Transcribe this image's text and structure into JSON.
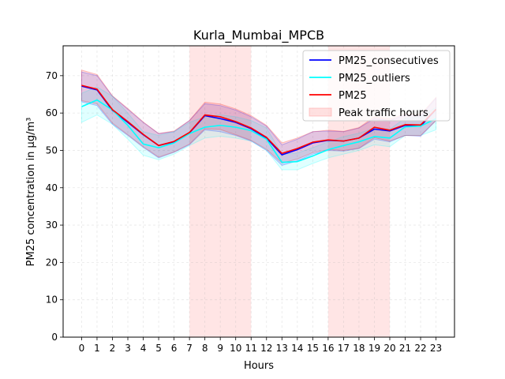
{
  "chart_data": {
    "type": "line",
    "title": "Kurla_Mumbai_MPCB",
    "xlabel": "Hours",
    "ylabel": "PM25 concentration in μg/m³",
    "x": [
      0,
      1,
      2,
      3,
      4,
      5,
      6,
      7,
      8,
      9,
      10,
      11,
      12,
      13,
      14,
      15,
      16,
      17,
      18,
      19,
      20,
      21,
      22,
      23
    ],
    "xticks": [
      "0",
      "1",
      "2",
      "3",
      "4",
      "5",
      "6",
      "7",
      "8",
      "9",
      "10",
      "11",
      "12",
      "13",
      "14",
      "15",
      "16",
      "17",
      "18",
      "19",
      "20",
      "21",
      "22",
      "23"
    ],
    "yticks": [
      "0",
      "10",
      "20",
      "30",
      "40",
      "50",
      "60",
      "70"
    ],
    "xlim": [
      -1.2,
      24.2
    ],
    "ylim": [
      0,
      78
    ],
    "grid": true,
    "legend_position": "top-right",
    "series": [
      {
        "name": "PM25_consecutives",
        "color": "#0000ff",
        "values": [
          67.2,
          66.2,
          60.7,
          57.5,
          54.2,
          51.3,
          52.3,
          54.7,
          59.3,
          58.5,
          57.5,
          55.8,
          53.3,
          48.8,
          50.2,
          52.0,
          52.7,
          52.5,
          53.3,
          55.7,
          55.2,
          56.7,
          56.5,
          61.0
        ],
        "band_lower": [
          63.0,
          62.0,
          57.0,
          54.0,
          50.8,
          48.0,
          49.5,
          51.5,
          55.5,
          55.0,
          54.0,
          52.5,
          50.0,
          46.0,
          47.2,
          49.0,
          50.0,
          49.8,
          50.5,
          53.0,
          52.3,
          54.0,
          53.8,
          58.0
        ],
        "band_upper": [
          71.0,
          70.0,
          64.5,
          61.0,
          57.5,
          54.5,
          55.0,
          58.0,
          62.5,
          62.0,
          60.8,
          59.0,
          56.5,
          51.5,
          53.0,
          55.0,
          55.2,
          55.0,
          56.0,
          58.5,
          58.0,
          59.5,
          59.2,
          64.0
        ],
        "band_color": "#0000ff"
      },
      {
        "name": "PM25_outliers",
        "color": "#00ffff",
        "values": [
          61.7,
          63.5,
          60.8,
          56.7,
          51.7,
          50.7,
          52.0,
          54.5,
          56.2,
          56.7,
          56.2,
          55.3,
          53.0,
          46.8,
          47.0,
          48.5,
          50.2,
          51.3,
          52.3,
          53.7,
          53.3,
          56.3,
          56.5,
          58.5
        ],
        "band_lower": [
          57.5,
          59.5,
          57.0,
          53.0,
          48.7,
          47.5,
          49.0,
          51.3,
          53.3,
          53.8,
          53.3,
          52.5,
          50.0,
          44.8,
          44.8,
          46.5,
          48.0,
          49.0,
          50.0,
          51.5,
          51.0,
          54.0,
          54.0,
          55.5
        ],
        "band_upper": [
          65.3,
          67.0,
          64.5,
          60.0,
          55.0,
          54.0,
          55.0,
          57.5,
          59.0,
          59.5,
          59.0,
          58.0,
          56.0,
          49.0,
          49.3,
          50.7,
          52.3,
          53.7,
          54.6,
          56.0,
          55.7,
          58.6,
          59.0,
          61.5
        ],
        "band_color": "#00ffff"
      },
      {
        "name": "PM25",
        "color": "#ff0000",
        "values": [
          67.4,
          66.4,
          60.9,
          57.7,
          54.3,
          51.3,
          52.4,
          54.8,
          59.5,
          59.0,
          57.7,
          56.0,
          53.5,
          49.2,
          50.5,
          52.2,
          52.8,
          52.5,
          53.3,
          56.2,
          55.4,
          56.9,
          56.8,
          61.0
        ],
        "band_lower": [
          63.3,
          62.5,
          57.3,
          54.2,
          51.0,
          48.2,
          49.6,
          51.7,
          55.8,
          55.6,
          54.2,
          52.7,
          50.3,
          46.6,
          47.7,
          49.4,
          50.2,
          50.0,
          50.6,
          53.4,
          52.5,
          54.0,
          54.0,
          58.0
        ],
        "band_upper": [
          71.5,
          70.3,
          64.6,
          61.2,
          57.6,
          54.5,
          55.2,
          58.0,
          62.9,
          62.4,
          61.1,
          59.3,
          56.7,
          52.0,
          53.3,
          55.0,
          55.4,
          55.1,
          56.1,
          59.0,
          58.4,
          59.8,
          59.6,
          64.2
        ],
        "band_color": "#ff0000"
      }
    ],
    "shaded_regions": [
      {
        "name": "Peak traffic hours",
        "from": 7,
        "to": 11,
        "color": "#ff9999"
      },
      {
        "name": "Peak traffic hours",
        "from": 16,
        "to": 20,
        "color": "#ff9999"
      }
    ],
    "legend_entries": [
      "PM25_consecutives",
      "PM25_outliers",
      "PM25",
      "Peak traffic hours"
    ]
  }
}
